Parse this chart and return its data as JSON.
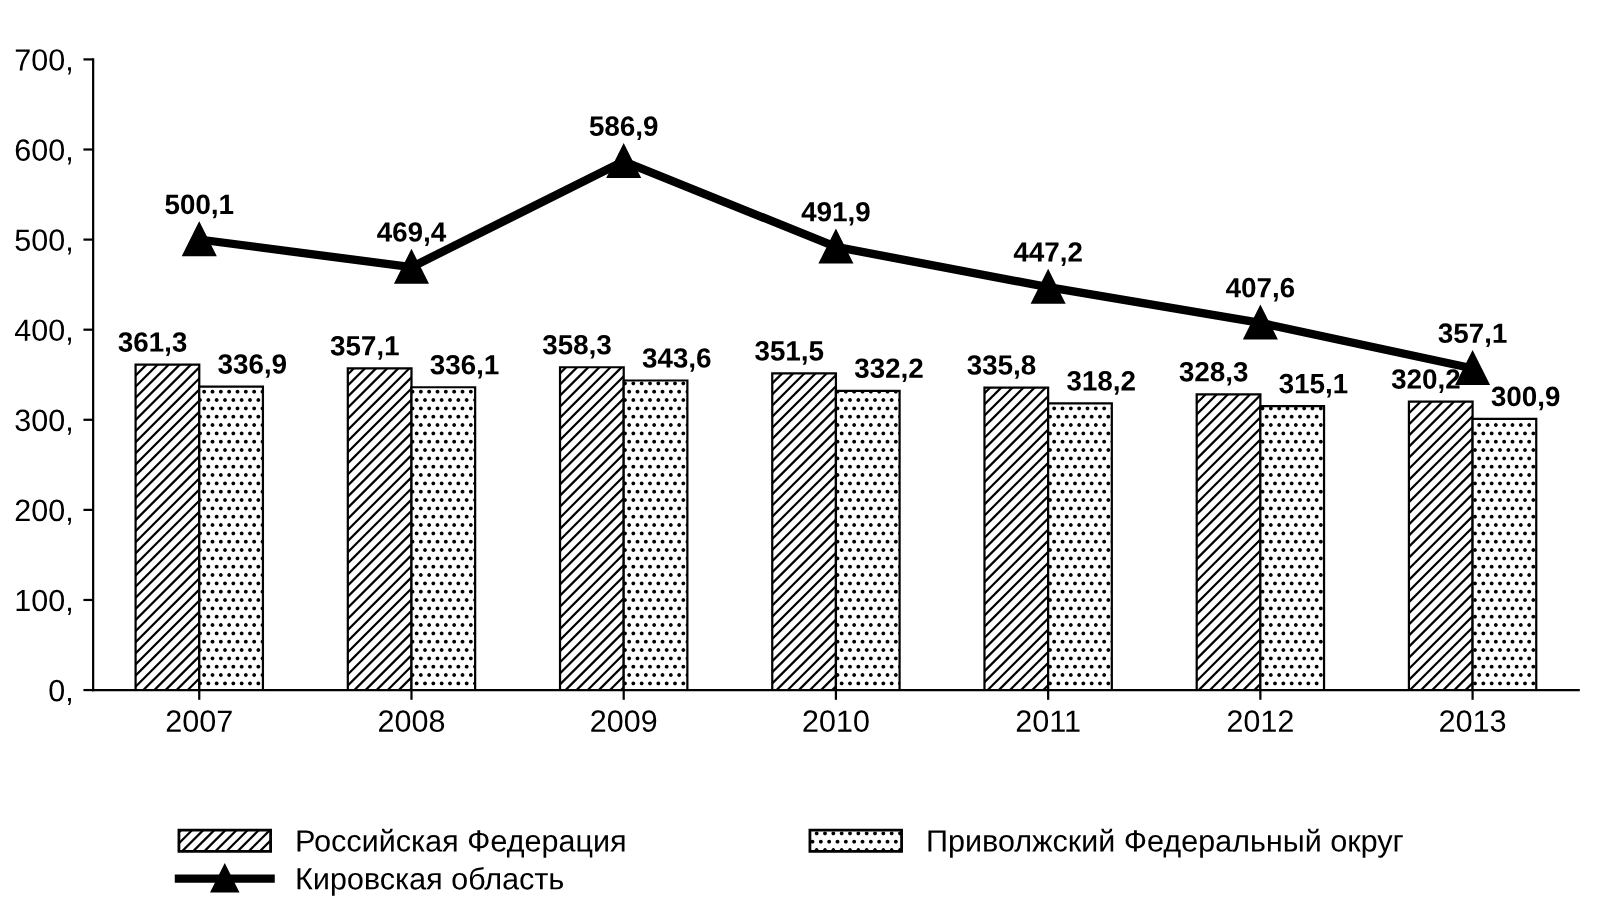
{
  "chart_data": {
    "type": "bar",
    "categories": [
      "2007",
      "2008",
      "2009",
      "2010",
      "2011",
      "2012",
      "2013"
    ],
    "series": [
      {
        "name": "Российская Федерация",
        "color": "#000000",
        "values": [
          361.3,
          357.1,
          358.3,
          351.5,
          335.8,
          328.3,
          320.2
        ],
        "value_labels": [
          "361,3",
          "357,1",
          "358,3",
          "351,5",
          "335,8",
          "328,3",
          "320,2"
        ]
      },
      {
        "name": "Приволжский Федеральный округ",
        "color": "#000000",
        "values": [
          336.9,
          336.1,
          343.6,
          332.2,
          318.2,
          315.1,
          300.9
        ],
        "value_labels": [
          "336,9",
          "336,1",
          "343,6",
          "332,2",
          "318,2",
          "315,1",
          "300,9"
        ]
      },
      {
        "name": "Кировская область",
        "type": "line",
        "color": "#000000",
        "marker": "triangle",
        "values": [
          500.1,
          469.4,
          586.9,
          491.9,
          447.2,
          407.6,
          357.1
        ],
        "value_labels": [
          "500,1",
          "469,4",
          "586,9",
          "491,9",
          "447,2",
          "407,6",
          "357,1"
        ]
      }
    ],
    "ylim": [
      0,
      700
    ],
    "yticks": [
      {
        "value": 0,
        "label": "0,"
      },
      {
        "value": 100,
        "label": "100,"
      },
      {
        "value": 200,
        "label": "200,"
      },
      {
        "value": 300,
        "label": "300,"
      },
      {
        "value": 400,
        "label": "400,"
      },
      {
        "value": 500,
        "label": "500,"
      },
      {
        "value": 600,
        "label": "600,"
      },
      {
        "value": 700,
        "label": "700,"
      }
    ],
    "legend": "bottom",
    "grid": false
  }
}
